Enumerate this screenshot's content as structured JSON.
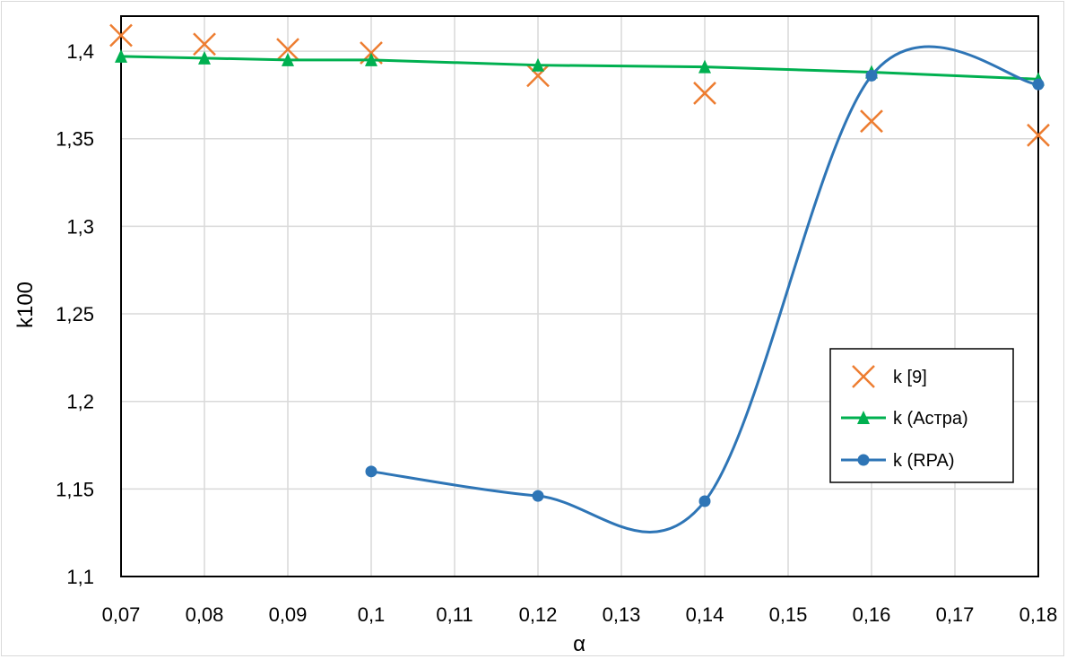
{
  "chart_data": {
    "type": "line",
    "xlabel": "α",
    "ylabel": "k100",
    "xlim": [
      0.07,
      0.18
    ],
    "ylim": [
      1.1,
      1.42
    ],
    "x_ticks": [
      "0,07",
      "0,08",
      "0,09",
      "0,1",
      "0,11",
      "0,12",
      "0,13",
      "0,14",
      "0,15",
      "0,16",
      "0,17",
      "0,18"
    ],
    "y_ticks": [
      "1,1",
      "1,15",
      "1,2",
      "1,25",
      "1,3",
      "1,35",
      "1,4"
    ],
    "grid": true,
    "legend_position": "right",
    "series": [
      {
        "name": "k [9]",
        "marker": "x",
        "line": "none",
        "color": "#ed7d31",
        "x": [
          0.07,
          0.08,
          0.09,
          0.1,
          0.12,
          0.14,
          0.16,
          0.18
        ],
        "y": [
          1.409,
          1.404,
          1.401,
          1.399,
          1.386,
          1.376,
          1.36,
          1.352
        ]
      },
      {
        "name": "k (Астра)",
        "marker": "triangle",
        "line": "straight",
        "color": "#00b050",
        "x": [
          0.07,
          0.08,
          0.09,
          0.1,
          0.12,
          0.14,
          0.16,
          0.18
        ],
        "y": [
          1.397,
          1.396,
          1.395,
          1.395,
          1.392,
          1.391,
          1.388,
          1.384
        ]
      },
      {
        "name": "k (RPA)",
        "marker": "circle",
        "line": "smooth",
        "color": "#2e75b6",
        "x": [
          0.1,
          0.12,
          0.14,
          0.16,
          0.18
        ],
        "y": [
          1.16,
          1.146,
          1.143,
          1.386,
          1.381
        ]
      }
    ]
  }
}
